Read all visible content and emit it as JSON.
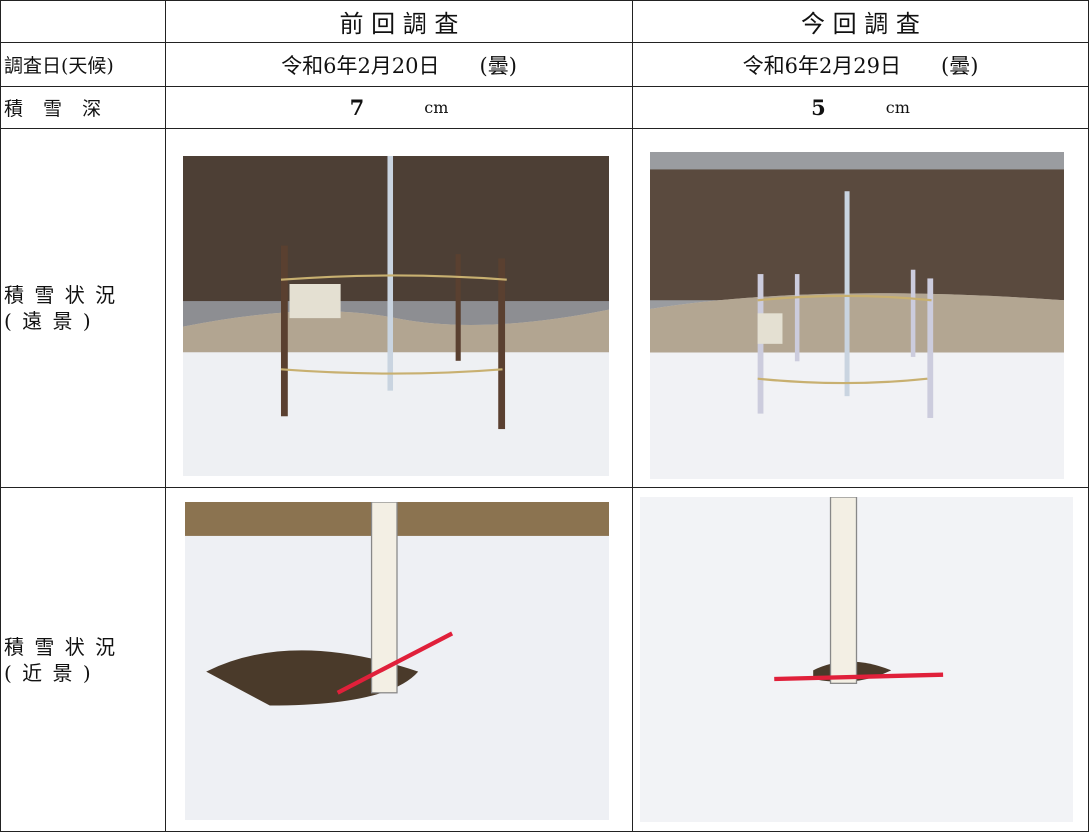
{
  "header": {
    "previous": "前 回 調 査",
    "current": "今 回 調 査"
  },
  "survey_date": {
    "label": "調査日(天候)",
    "previous": {
      "date": "令和6年2月20日",
      "weather": "(曇)"
    },
    "current": {
      "date": "令和6年2月29日",
      "weather": "(曇)"
    }
  },
  "snow_depth": {
    "label": "積 雪 深",
    "previous": {
      "value": 7,
      "unit": "cm"
    },
    "current": {
      "value": 5,
      "unit": "cm"
    }
  },
  "distant_view": {
    "label": [
      "積 雪 状 況",
      "( 遠 景 )"
    ]
  },
  "close_view": {
    "label": [
      "積 雪 状 況",
      "( 近 景 )"
    ]
  }
}
